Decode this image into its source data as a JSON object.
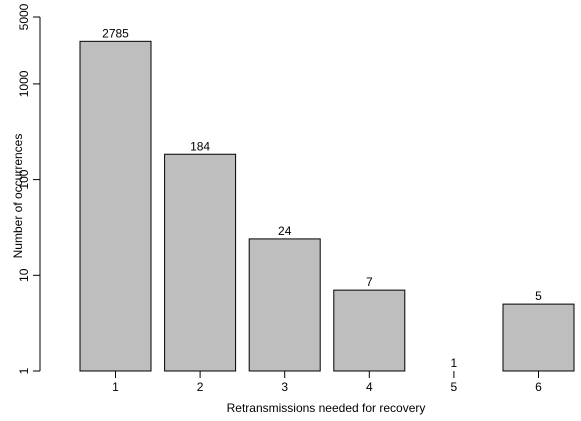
{
  "chart_data": {
    "type": "bar",
    "categories": [
      "1",
      "2",
      "3",
      "4",
      "5",
      "6"
    ],
    "values": [
      2785,
      184,
      24,
      7,
      1,
      5
    ],
    "data_labels": [
      "2785",
      "184",
      "24",
      "7",
      "1",
      "5"
    ],
    "title": "",
    "xlabel": "Retransmissions needed for recovery",
    "ylabel": "Number of occurrences",
    "y_scale": "log",
    "ylim": [
      1,
      5000
    ],
    "y_ticks": [
      1,
      10,
      100,
      1000,
      5000
    ],
    "y_tick_labels": [
      "1",
      "10",
      "100",
      "1000",
      "5000"
    ],
    "grid": false,
    "legend": "none",
    "colors": {
      "bar_fill": "#bebebe",
      "bar_stroke": "#000000"
    }
  }
}
